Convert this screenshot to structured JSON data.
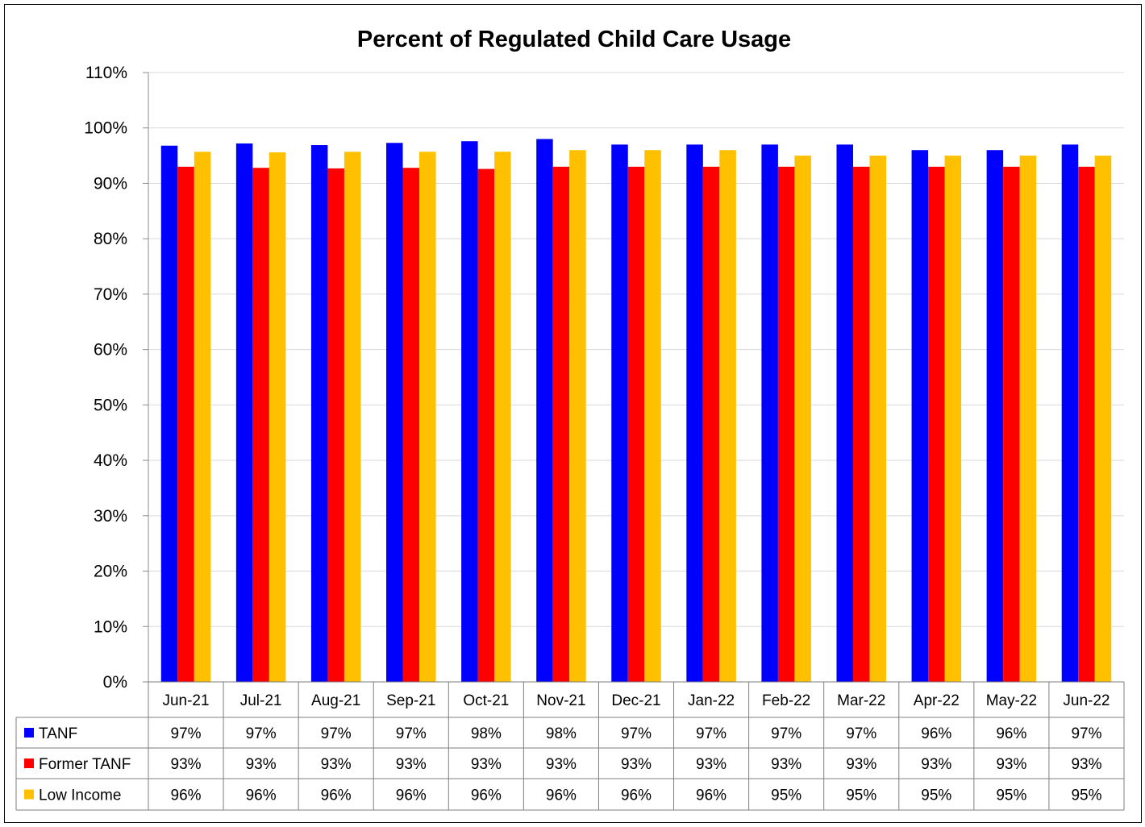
{
  "chart_data": {
    "type": "bar",
    "title": "Percent of Regulated Child Care Usage",
    "categories": [
      "Jun-21",
      "Jul-21",
      "Aug-21",
      "Sep-21",
      "Oct-21",
      "Nov-21",
      "Dec-21",
      "Jan-22",
      "Feb-22",
      "Mar-22",
      "Apr-22",
      "May-22",
      "Jun-22"
    ],
    "ylim": [
      0,
      110
    ],
    "yticks": [
      "0%",
      "10%",
      "20%",
      "30%",
      "40%",
      "50%",
      "60%",
      "70%",
      "80%",
      "90%",
      "100%",
      "110%"
    ],
    "grid": true,
    "legend_placement": "data-table-left",
    "series": [
      {
        "name": "TANF",
        "color": "#0000FF",
        "values": [
          96.8,
          97.2,
          96.9,
          97.3,
          97.6,
          98.0,
          97.0,
          97.0,
          97.0,
          97.0,
          96.0,
          96.0,
          97.0
        ],
        "labels": [
          "97%",
          "97%",
          "97%",
          "97%",
          "98%",
          "98%",
          "97%",
          "97%",
          "97%",
          "97%",
          "96%",
          "96%",
          "97%"
        ]
      },
      {
        "name": "Former TANF",
        "color": "#FF0000",
        "values": [
          93.0,
          92.8,
          92.7,
          92.8,
          92.6,
          93.0,
          93.0,
          93.0,
          93.0,
          93.0,
          93.0,
          93.0,
          93.0
        ],
        "labels": [
          "93%",
          "93%",
          "93%",
          "93%",
          "93%",
          "93%",
          "93%",
          "93%",
          "93%",
          "93%",
          "93%",
          "93%",
          "93%"
        ]
      },
      {
        "name": "Low Income",
        "color": "#FFC000",
        "values": [
          95.7,
          95.6,
          95.7,
          95.7,
          95.7,
          96.0,
          96.0,
          96.0,
          95.0,
          95.0,
          95.0,
          95.0,
          95.0
        ],
        "labels": [
          "96%",
          "96%",
          "96%",
          "96%",
          "96%",
          "96%",
          "96%",
          "96%",
          "95%",
          "95%",
          "95%",
          "95%",
          "95%"
        ]
      }
    ]
  }
}
